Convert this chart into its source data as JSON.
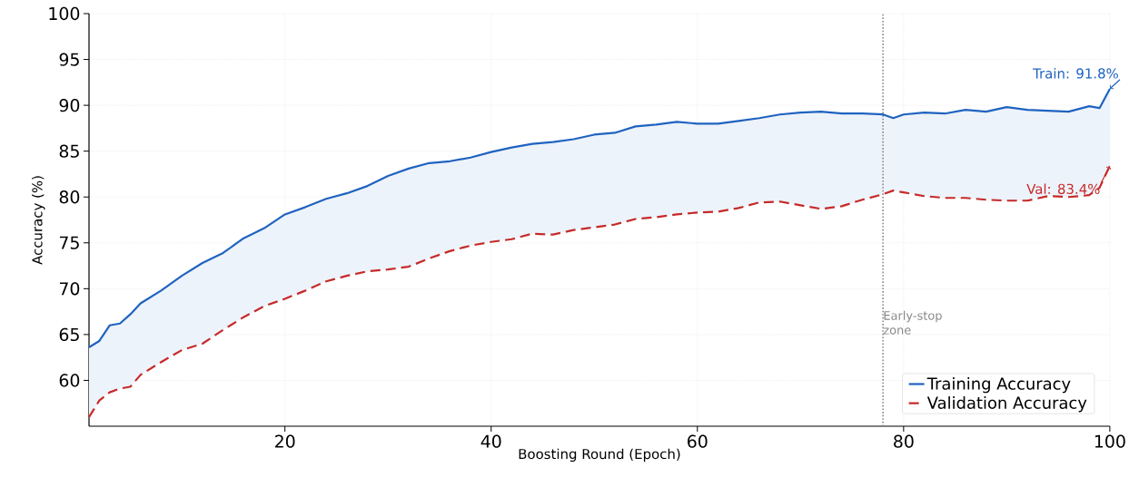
{
  "chart_data": {
    "type": "line",
    "xlabel": "Boosting Round (Epoch)",
    "ylabel": "Accuracy (%)",
    "x": [
      1,
      2,
      3,
      4,
      5,
      6,
      8,
      10,
      12,
      14,
      16,
      18,
      20,
      22,
      24,
      26,
      28,
      30,
      32,
      34,
      36,
      38,
      40,
      42,
      44,
      46,
      48,
      50,
      52,
      54,
      56,
      58,
      60,
      62,
      64,
      66,
      68,
      70,
      72,
      74,
      76,
      78,
      79,
      80,
      82,
      84,
      86,
      88,
      90,
      92,
      94,
      96,
      98,
      99,
      100
    ],
    "series": [
      {
        "name": "Training Accuracy",
        "color": "#1f63c0",
        "line_style": "solid",
        "values": [
          63.6,
          64.3,
          66.0,
          66.2,
          67.2,
          68.4,
          69.8,
          71.4,
          72.8,
          73.9,
          75.5,
          76.6,
          78.1,
          78.9,
          79.8,
          80.4,
          81.2,
          82.3,
          83.1,
          83.7,
          83.9,
          84.3,
          84.9,
          85.4,
          85.8,
          86.0,
          86.3,
          86.8,
          87.0,
          87.7,
          87.9,
          88.2,
          88.0,
          88.0,
          88.3,
          88.6,
          89.0,
          89.2,
          89.3,
          89.1,
          89.1,
          89.0,
          88.6,
          89.0,
          89.2,
          89.1,
          89.5,
          89.3,
          89.8,
          89.5,
          89.4,
          89.3,
          89.9,
          89.7,
          91.8
        ],
        "lower": [
          56.0,
          57.8,
          58.7,
          59.1,
          59.3,
          60.6,
          62.0,
          63.3,
          64.0,
          65.5,
          66.9,
          68.1,
          68.9,
          69.8,
          70.8,
          71.4,
          71.9,
          72.1,
          72.4,
          73.3,
          74.1,
          74.7,
          75.1,
          75.4,
          76.0,
          75.9,
          76.4,
          76.7,
          77.0,
          77.6,
          77.8,
          78.1,
          78.3,
          78.4,
          78.8,
          79.4,
          79.5,
          79.1,
          78.7,
          79.0,
          79.7,
          80.3,
          80.7,
          80.5,
          80.1,
          79.9,
          79.9,
          79.7,
          79.6,
          79.6,
          80.1,
          80.0,
          80.2,
          81.0,
          83.4
        ],
        "upper": [
          63.6,
          64.3,
          66.0,
          66.2,
          67.2,
          68.4,
          69.8,
          71.4,
          72.8,
          73.9,
          75.5,
          76.6,
          78.1,
          78.9,
          79.8,
          80.4,
          81.2,
          82.3,
          83.1,
          83.7,
          83.9,
          84.3,
          84.9,
          85.4,
          85.8,
          86.0,
          86.3,
          86.8,
          87.0,
          87.7,
          87.9,
          88.2,
          88.0,
          88.0,
          88.3,
          88.6,
          89.0,
          89.2,
          89.3,
          89.1,
          89.1,
          89.0,
          88.6,
          89.0,
          89.2,
          89.1,
          89.5,
          89.3,
          89.8,
          89.5,
          89.4,
          89.3,
          89.9,
          89.7,
          91.8
        ]
      },
      {
        "name": "Validation Accuracy",
        "color": "#c62a2a",
        "line_style": "dashed",
        "values": [
          56.0,
          57.8,
          58.7,
          59.1,
          59.3,
          60.6,
          62.0,
          63.3,
          64.0,
          65.5,
          66.9,
          68.1,
          68.9,
          69.8,
          70.8,
          71.4,
          71.9,
          72.1,
          72.4,
          73.3,
          74.1,
          74.7,
          75.1,
          75.4,
          76.0,
          75.9,
          76.4,
          76.7,
          77.0,
          77.6,
          77.8,
          78.1,
          78.3,
          78.4,
          78.8,
          79.4,
          79.5,
          79.1,
          78.7,
          79.0,
          79.7,
          80.3,
          80.7,
          80.5,
          80.1,
          79.9,
          79.9,
          79.7,
          79.6,
          79.6,
          80.1,
          80.0,
          80.2,
          81.0,
          83.4
        ]
      }
    ],
    "xlim": [
      1,
      100
    ],
    "ylim": [
      55,
      100
    ],
    "xticks": [
      20,
      40,
      60,
      80,
      100
    ],
    "yticks": [
      60,
      65,
      70,
      75,
      80,
      85,
      90,
      95,
      100
    ],
    "ref_lines": [
      {
        "axis": "x",
        "value": 78,
        "label": "Early-stop zone",
        "color": "#888888",
        "line_style": "dotted"
      }
    ],
    "annotations": [
      {
        "text": "Train: 91.8%",
        "x": 100,
        "y": 91.8
      },
      {
        "text": "Val: 83.4%",
        "x": 100,
        "y": 83.4
      }
    ],
    "grid": true,
    "legend": "bottom right",
    "marker": "none"
  }
}
